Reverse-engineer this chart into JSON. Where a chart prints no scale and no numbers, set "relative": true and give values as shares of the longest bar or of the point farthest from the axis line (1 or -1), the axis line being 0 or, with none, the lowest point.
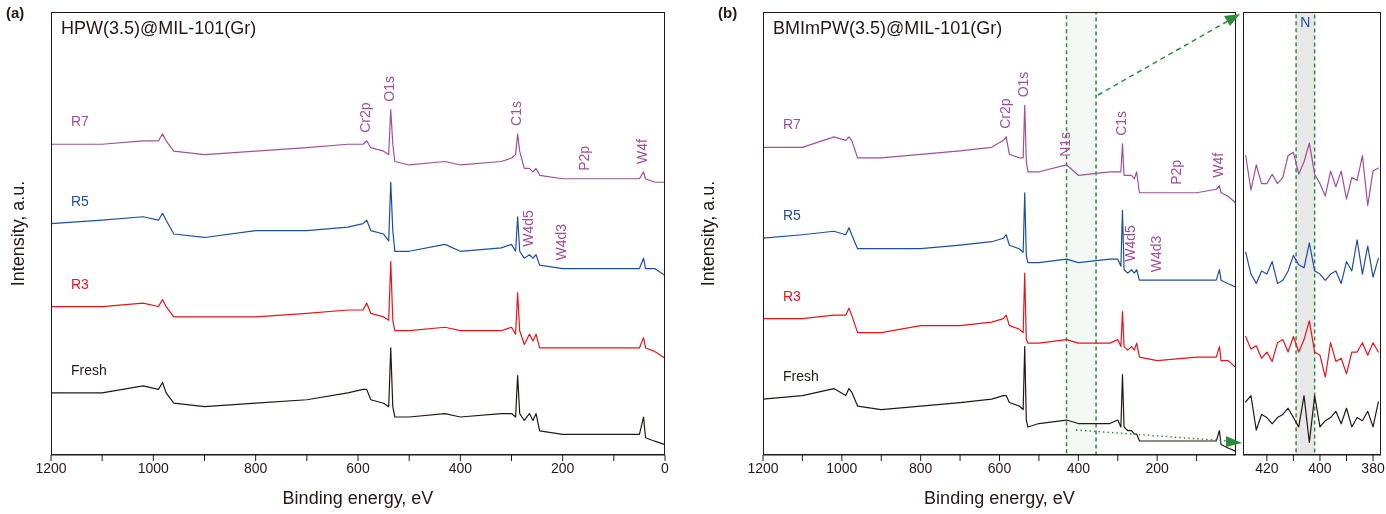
{
  "chart_data": [
    {
      "type": "line",
      "title": "(a)",
      "subtitle": "HPW(3.5)@MIL-101(Gr)",
      "xlabel": "Binding energy, eV",
      "ylabel": "Intensity, a.u.",
      "relative": true,
      "marker": "none",
      "x": [
        1200,
        1100,
        1020,
        990,
        982,
        975,
        960,
        900,
        800,
        700,
        620,
        590,
        583,
        575,
        550,
        540,
        536,
        532,
        528,
        500,
        430,
        400,
        320,
        300,
        292,
        288,
        284,
        275,
        265,
        258,
        252,
        245,
        200,
        100,
        50,
        42,
        38,
        20,
        0
      ],
      "xlim": [
        1200,
        0
      ],
      "xticks": [
        1200,
        {
          "value": 1100,
          "label": null
        },
        1000,
        {
          "value": 900,
          "label": null
        },
        800,
        {
          "value": 700,
          "label": null
        },
        600,
        {
          "value": 500,
          "label": null
        },
        400,
        {
          "value": 300,
          "label": null
        },
        200,
        {
          "value": 100,
          "label": null
        },
        0
      ],
      "series": [
        {
          "name": "R7",
          "color": "#a0509a",
          "values": [
            0.9,
            0.9,
            0.91,
            0.91,
            0.93,
            0.91,
            0.88,
            0.87,
            0.88,
            0.89,
            0.9,
            0.9,
            0.91,
            0.89,
            0.88,
            0.87,
            1.0,
            0.9,
            0.85,
            0.84,
            0.85,
            0.84,
            0.85,
            0.86,
            0.87,
            0.93,
            0.88,
            0.83,
            0.83,
            0.82,
            0.83,
            0.81,
            0.8,
            0.8,
            0.8,
            0.82,
            0.8,
            0.79,
            0.79
          ]
        },
        {
          "name": "R5",
          "color": "#1f4ea0",
          "values": [
            0.67,
            0.68,
            0.69,
            0.68,
            0.7,
            0.68,
            0.64,
            0.63,
            0.65,
            0.65,
            0.66,
            0.67,
            0.68,
            0.65,
            0.64,
            0.62,
            0.79,
            0.65,
            0.59,
            0.59,
            0.61,
            0.59,
            0.6,
            0.61,
            0.59,
            0.69,
            0.59,
            0.57,
            0.58,
            0.57,
            0.58,
            0.55,
            0.54,
            0.54,
            0.54,
            0.57,
            0.54,
            0.54,
            0.52
          ]
        },
        {
          "name": "R3",
          "color": "#e8141c",
          "values": [
            0.43,
            0.43,
            0.44,
            0.43,
            0.45,
            0.43,
            0.4,
            0.4,
            0.4,
            0.41,
            0.42,
            0.42,
            0.44,
            0.41,
            0.4,
            0.39,
            0.56,
            0.39,
            0.36,
            0.36,
            0.37,
            0.36,
            0.36,
            0.37,
            0.35,
            0.47,
            0.36,
            0.32,
            0.35,
            0.33,
            0.35,
            0.31,
            0.31,
            0.31,
            0.31,
            0.34,
            0.31,
            0.3,
            0.28
          ]
        },
        {
          "name": "Fresh",
          "color": "#231815",
          "values": [
            0.18,
            0.18,
            0.2,
            0.19,
            0.21,
            0.18,
            0.15,
            0.14,
            0.15,
            0.16,
            0.18,
            0.19,
            0.19,
            0.16,
            0.15,
            0.14,
            0.31,
            0.14,
            0.11,
            0.11,
            0.12,
            0.11,
            0.12,
            0.12,
            0.11,
            0.23,
            0.12,
            0.1,
            0.12,
            0.1,
            0.12,
            0.07,
            0.06,
            0.06,
            0.06,
            0.11,
            0.05,
            0.04,
            0.03
          ]
        }
      ],
      "annotations": [
        {
          "text": "Cr2p",
          "x": 583,
          "y": 0.91
        },
        {
          "text": "O1s",
          "x": 536,
          "y": 1.0
        },
        {
          "text": "C1s",
          "x": 288,
          "y": 0.93
        },
        {
          "text": "P2p",
          "x": 155,
          "y": 0.8
        },
        {
          "text": "W4f",
          "x": 42,
          "y": 0.82
        },
        {
          "text": "W4d5",
          "x": 265,
          "y": 0.58
        },
        {
          "text": "W4d3",
          "x": 200,
          "y": 0.54
        }
      ]
    },
    {
      "type": "line",
      "title": "(b)",
      "subtitle": "BMImPW(3.5)@MIL-101(Gr)",
      "xlabel": "Binding energy, eV",
      "ylabel": "Intensity, a.u.",
      "relative": true,
      "marker": "none",
      "x": [
        1200,
        1100,
        1020,
        990,
        982,
        975,
        960,
        900,
        800,
        700,
        620,
        590,
        583,
        575,
        550,
        540,
        536,
        532,
        528,
        500,
        430,
        400,
        320,
        300,
        292,
        288,
        284,
        275,
        265,
        258,
        252,
        245,
        200,
        100,
        50,
        42,
        38,
        20,
        0
      ],
      "xlim": [
        1200,
        0
      ],
      "xticks": [
        1200,
        {
          "value": 1100,
          "label": null
        },
        1000,
        {
          "value": 900,
          "label": null
        },
        800,
        {
          "value": 700,
          "label": null
        },
        600,
        {
          "value": 500,
          "label": null
        },
        400,
        {
          "value": 300,
          "label": null
        },
        200,
        {
          "value": 100,
          "label": null
        }
      ],
      "series": [
        {
          "name": "R7",
          "color": "#a0509a",
          "values": [
            0.88,
            0.88,
            0.91,
            0.9,
            0.91,
            0.9,
            0.85,
            0.85,
            0.86,
            0.87,
            0.88,
            0.9,
            0.91,
            0.86,
            0.85,
            0.85,
            1.0,
            0.84,
            0.81,
            0.81,
            0.83,
            0.8,
            0.81,
            0.81,
            0.81,
            0.89,
            0.8,
            0.8,
            0.8,
            0.79,
            0.81,
            0.75,
            0.75,
            0.75,
            0.76,
            0.77,
            0.75,
            0.74,
            0.72
          ]
        },
        {
          "name": "R5",
          "color": "#1f4ea0",
          "values": [
            0.62,
            0.63,
            0.64,
            0.63,
            0.65,
            0.63,
            0.59,
            0.59,
            0.59,
            0.6,
            0.61,
            0.62,
            0.63,
            0.6,
            0.59,
            0.58,
            0.75,
            0.57,
            0.55,
            0.55,
            0.56,
            0.55,
            0.56,
            0.56,
            0.54,
            0.7,
            0.53,
            0.52,
            0.53,
            0.52,
            0.53,
            0.5,
            0.5,
            0.5,
            0.5,
            0.53,
            0.5,
            0.49,
            0.48
          ]
        },
        {
          "name": "R3",
          "color": "#e8141c",
          "values": [
            0.39,
            0.39,
            0.4,
            0.4,
            0.42,
            0.4,
            0.35,
            0.35,
            0.37,
            0.37,
            0.38,
            0.39,
            0.4,
            0.37,
            0.36,
            0.35,
            0.52,
            0.33,
            0.32,
            0.32,
            0.33,
            0.32,
            0.32,
            0.33,
            0.31,
            0.41,
            0.31,
            0.3,
            0.31,
            0.3,
            0.32,
            0.28,
            0.27,
            0.28,
            0.28,
            0.31,
            0.27,
            0.27,
            0.25
          ]
        },
        {
          "name": "Fresh",
          "color": "#231815",
          "values": [
            0.16,
            0.17,
            0.19,
            0.17,
            0.19,
            0.18,
            0.14,
            0.13,
            0.14,
            0.15,
            0.16,
            0.17,
            0.17,
            0.15,
            0.14,
            0.13,
            0.31,
            0.1,
            0.08,
            0.09,
            0.1,
            0.09,
            0.09,
            0.1,
            0.08,
            0.23,
            0.08,
            0.07,
            0.07,
            0.06,
            0.06,
            0.04,
            0.04,
            0.04,
            0.04,
            0.07,
            0.03,
            0.02,
            0.01
          ]
        }
      ],
      "bands": [
        {
          "axis": "x",
          "from": 430,
          "to": 355,
          "color": "#2e8b3e"
        }
      ],
      "annotations": [
        {
          "text": "Cr2p",
          "x": 583,
          "y": 0.91
        },
        {
          "text": "O1s",
          "x": 536,
          "y": 1.0
        },
        {
          "text": "N1s",
          "x": 430,
          "y": 0.83
        },
        {
          "text": "C1s",
          "x": 288,
          "y": 0.89
        },
        {
          "text": "P2p",
          "x": 150,
          "y": 0.75
        },
        {
          "text": "W4f",
          "x": 42,
          "y": 0.77
        },
        {
          "text": "W4d5",
          "x": 265,
          "y": 0.53
        },
        {
          "text": "W4d3",
          "x": 200,
          "y": 0.5
        }
      ]
    },
    {
      "type": "line",
      "relative": true,
      "marker": "none",
      "x": [
        428,
        426,
        424,
        422,
        420,
        418,
        416,
        414,
        412,
        410,
        408,
        406,
        404,
        402,
        400,
        398,
        396,
        394,
        392,
        390,
        388,
        386,
        384,
        382,
        380,
        378
      ],
      "xlim": [
        429,
        377
      ],
      "xticks": [
        420,
        {
          "value": 410,
          "label": null
        },
        400,
        {
          "value": 390,
          "label": null
        },
        380
      ],
      "series": [
        {
          "color": "#a0509a",
          "values": [
            0.96,
            0.85,
            0.93,
            0.87,
            0.87,
            0.9,
            0.87,
            0.89,
            0.96,
            0.97,
            0.9,
            0.94,
            1.0,
            0.9,
            0.87,
            0.83,
            0.91,
            0.86,
            0.91,
            0.82,
            0.89,
            0.88,
            0.96,
            0.8,
            0.91,
            0.92
          ]
        },
        {
          "color": "#1f4ea0",
          "values": [
            0.65,
            0.58,
            0.55,
            0.59,
            0.58,
            0.62,
            0.55,
            0.56,
            0.59,
            0.64,
            0.61,
            0.6,
            0.68,
            0.59,
            0.58,
            0.56,
            0.58,
            0.59,
            0.55,
            0.62,
            0.59,
            0.69,
            0.58,
            0.67,
            0.57,
            0.63
          ]
        },
        {
          "color": "#e8141c",
          "values": [
            0.38,
            0.34,
            0.35,
            0.31,
            0.33,
            0.3,
            0.36,
            0.37,
            0.33,
            0.38,
            0.33,
            0.37,
            0.43,
            0.33,
            0.32,
            0.25,
            0.36,
            0.3,
            0.31,
            0.26,
            0.33,
            0.33,
            0.36,
            0.32,
            0.36,
            0.33
          ]
        },
        {
          "color": "#231815",
          "values": [
            0.17,
            0.19,
            0.08,
            0.13,
            0.12,
            0.1,
            0.12,
            0.13,
            0.15,
            0.12,
            0.09,
            0.19,
            0.04,
            0.19,
            0.09,
            0.11,
            0.12,
            0.14,
            0.1,
            0.15,
            0.09,
            0.12,
            0.11,
            0.14,
            0.09,
            0.17
          ]
        }
      ],
      "bands": [
        {
          "axis": "x",
          "from": 409,
          "to": 402,
          "label": "N",
          "color": "#e6e6e6"
        }
      ]
    }
  ]
}
